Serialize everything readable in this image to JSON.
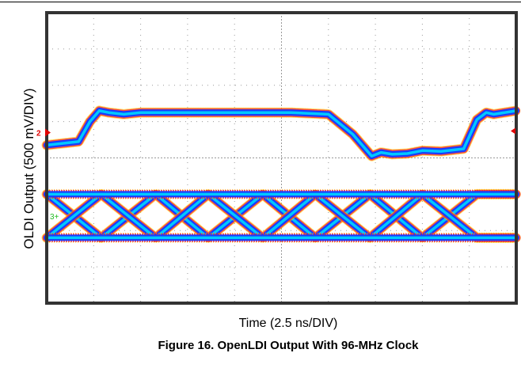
{
  "chart_data": {
    "type": "line",
    "title": "",
    "xlabel": "Time (2.5 ns/DIV)",
    "ylabel": "OLDI Output (500 mV/DIV)",
    "xlim": [
      0,
      25
    ],
    "ylim": [
      -4,
      4
    ],
    "grid": true,
    "series": [
      {
        "marker": "",
        "x": [
          0,
          1.7,
          2.3,
          2.8,
          3.3,
          4.1,
          5,
          7,
          10,
          13,
          15,
          16.3,
          17.3,
          17.8,
          18.4,
          19.2,
          20,
          21,
          22.2,
          22.9,
          23.4,
          23.8,
          25
        ],
        "y": [
          0.35,
          0.45,
          1.0,
          1.3,
          1.25,
          1.2,
          1.25,
          1.25,
          1.25,
          1.25,
          1.2,
          0.65,
          0.05,
          0.15,
          0.1,
          0.12,
          0.2,
          0.18,
          0.25,
          1.05,
          1.25,
          1.2,
          1.3
        ]
      },
      {
        "marker": "",
        "x": [
          0,
          2.9,
          5.8,
          8.6,
          11.5,
          14.3,
          17.2,
          20.0,
          22.9,
          25
        ],
        "y": [
          -1.0,
          -2.2,
          -1.0,
          -2.2,
          -1.0,
          -2.2,
          -1.0,
          -2.2,
          -1.0,
          -1.0
        ]
      }
    ]
  },
  "figure": {
    "caption": "Figure 16. OpenLDI Output With 96-MHz Clock",
    "channel_markers": {
      "ch2": "2",
      "ch3": "3"
    },
    "trace_colors": {
      "core": "#00c8ff",
      "halo": "#1a3cff",
      "spark_red": "#ff2020",
      "spark_yellow": "#ffd000",
      "marker_red": "#e00000",
      "marker_green": "#22bb22"
    }
  }
}
